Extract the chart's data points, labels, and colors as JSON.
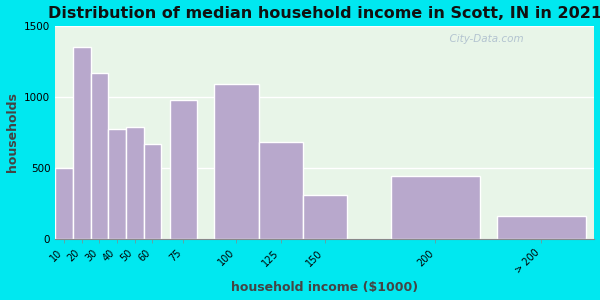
{
  "title": "Distribution of median household income in Scott, IN in 2021",
  "xlabel": "household income ($1000)",
  "ylabel": "households",
  "bar_labels": [
    "10",
    "20",
    "30",
    "40",
    "50",
    "60",
    "75",
    "100",
    "125",
    "150",
    "200",
    "> 200"
  ],
  "bar_values": [
    500,
    1350,
    1170,
    770,
    790,
    670,
    975,
    1090,
    680,
    310,
    440,
    160
  ],
  "bar_color": "#b8a8cc",
  "bar_widths": [
    10,
    10,
    10,
    10,
    10,
    10,
    15,
    25,
    25,
    25,
    50,
    50
  ],
  "bar_lefts": [
    10,
    20,
    30,
    40,
    50,
    60,
    75,
    100,
    125,
    150,
    200,
    260
  ],
  "ylim": [
    0,
    1500
  ],
  "yticks": [
    0,
    500,
    1000,
    1500
  ],
  "bg_outer": "#00e8f0",
  "bg_plot": "#e8f5e8",
  "watermark": "  City-Data.com",
  "title_fontsize": 11.5,
  "label_fontsize": 9
}
